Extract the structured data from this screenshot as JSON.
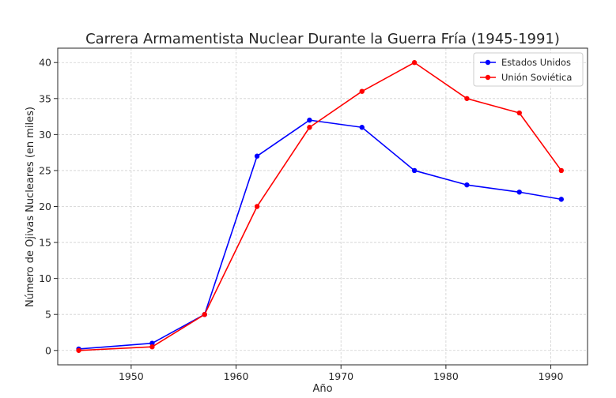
{
  "chart_data": {
    "type": "line",
    "title": "Carrera Armamentista Nuclear Durante la Guerra Fría (1945-1991)",
    "xlabel": "Año",
    "ylabel": "Número de Ojivas Nucleares (en miles)",
    "x": [
      1945,
      1952,
      1957,
      1962,
      1967,
      1972,
      1977,
      1982,
      1987,
      1991
    ],
    "xlim": [
      1943,
      1993.5
    ],
    "ylim": [
      -2,
      42
    ],
    "xticks": [
      1950,
      1960,
      1970,
      1980,
      1990
    ],
    "yticks": [
      0,
      5,
      10,
      15,
      20,
      25,
      30,
      35,
      40
    ],
    "grid": true,
    "legend_position": "top-right",
    "series": [
      {
        "name": "Estados Unidos",
        "color": "#0000ff",
        "values": [
          0.2,
          1,
          5,
          27,
          32,
          31,
          25,
          23,
          22,
          21
        ]
      },
      {
        "name": "Unión Soviética",
        "color": "#ff0000",
        "values": [
          0,
          0.5,
          5,
          20,
          31,
          36,
          40,
          35,
          33,
          25
        ]
      }
    ]
  }
}
